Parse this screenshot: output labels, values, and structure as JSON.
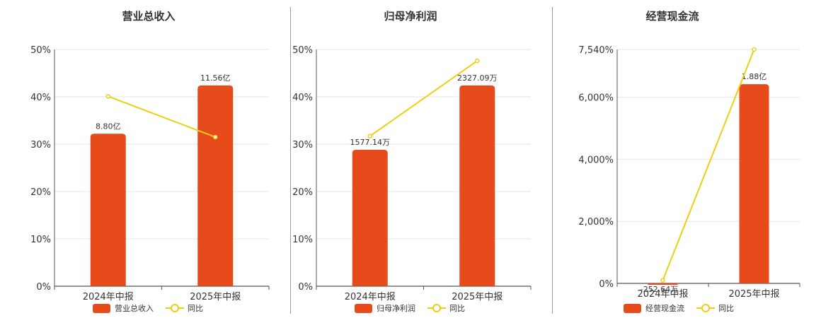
{
  "colors": {
    "bar": "#E84B1B",
    "line": "#EDCF12",
    "grid": "#E6E6E6",
    "axis": "#555555"
  },
  "chart_data": [
    {
      "type": "bar",
      "title": "营业总收入",
      "categories": [
        "2024年中报",
        "2025年中报"
      ],
      "bar_series": {
        "name": "营业总收入",
        "values": [
          32.2,
          42.4
        ]
      },
      "line_series": {
        "name": "同比",
        "values": [
          40.1,
          31.5
        ]
      },
      "bar_labels": [
        "8.80亿",
        "11.56亿"
      ],
      "yticks": [
        "0%",
        "10%",
        "20%",
        "30%",
        "40%",
        "50%"
      ],
      "ylim": [
        0,
        50
      ],
      "legend": {
        "bar": "营业总收入",
        "line": "同比",
        "position": "bottom"
      }
    },
    {
      "type": "bar",
      "title": "归母净利润",
      "categories": [
        "2024年中报",
        "2025年中报"
      ],
      "bar_series": {
        "name": "归母净利润",
        "values": [
          28.8,
          42.4
        ]
      },
      "line_series": {
        "name": "同比",
        "values": [
          31.7,
          47.6
        ]
      },
      "bar_labels": [
        "1577.14万",
        "2327.09万"
      ],
      "yticks": [
        "0%",
        "10%",
        "20%",
        "30%",
        "40%",
        "50%"
      ],
      "ylim": [
        0,
        50
      ],
      "legend": {
        "bar": "归母净利润",
        "line": "同比",
        "position": "bottom"
      }
    },
    {
      "type": "bar",
      "title": "经营现金流",
      "categories": [
        "2024年中报",
        "2025年中报"
      ],
      "bar_series": {
        "name": "经营现金流",
        "values": [
          -40,
          6420
        ]
      },
      "line_series": {
        "name": "同比",
        "values": [
          100,
          7540
        ]
      },
      "bar_labels": [
        "-252.64万",
        "1.88亿"
      ],
      "ytick_values": [
        0,
        2000,
        4000,
        6000,
        7540
      ],
      "yticks": [
        "0%",
        "2,000%",
        "4,000%",
        "6,000%",
        "7,540%"
      ],
      "ylim": [
        0,
        7540
      ],
      "legend": {
        "bar": "经营现金流",
        "line": "同比",
        "position": "bottom"
      }
    }
  ]
}
